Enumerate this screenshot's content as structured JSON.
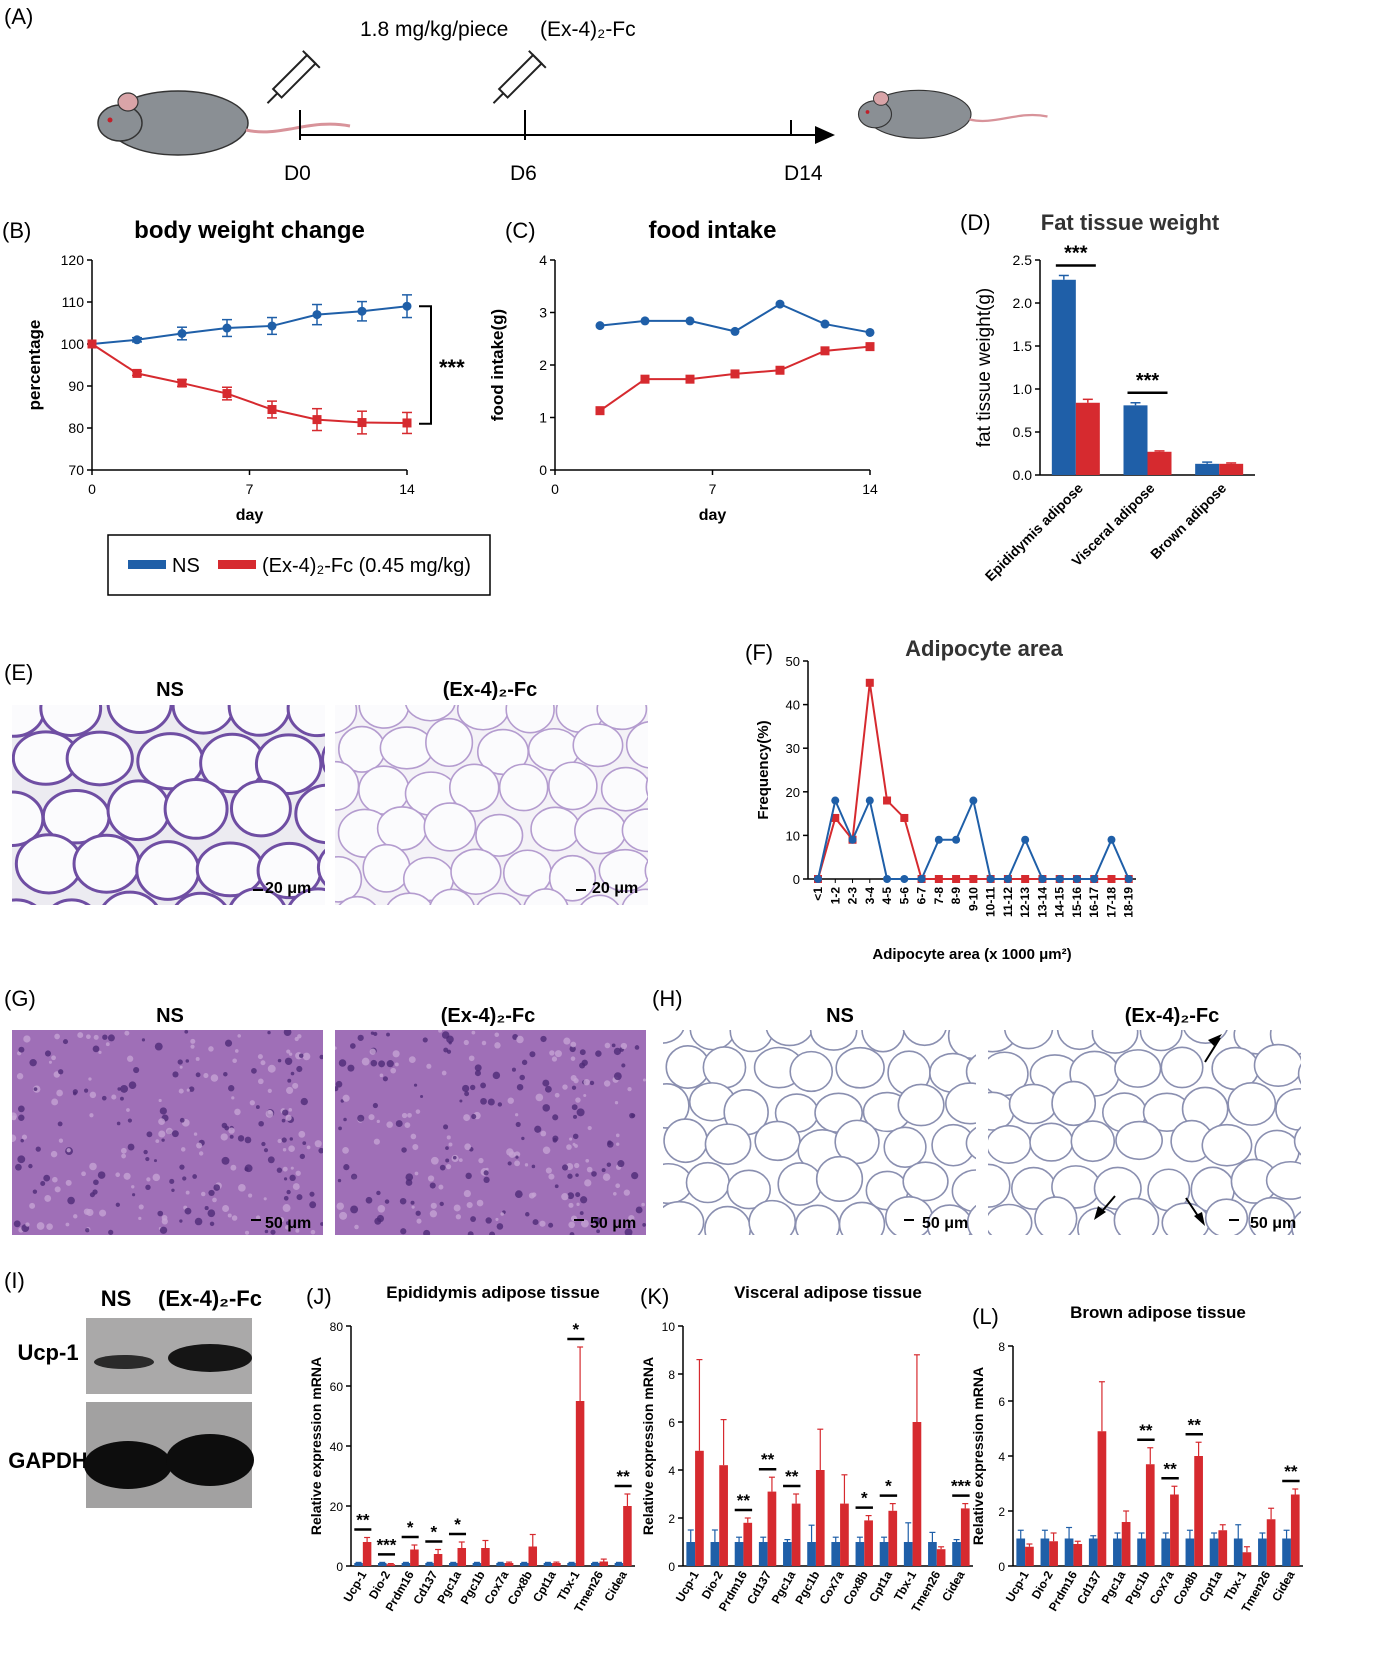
{
  "colors": {
    "ns": "#1f5fa8",
    "treat": "#d62a2f",
    "axis": "#000000",
    "he": "#7d4fa6",
    "ihc": "#8a8fb0"
  },
  "icons": [
    "mouse-icon",
    "syringe-icon",
    "arrow-icon"
  ],
  "panelA": {
    "label": "(A)",
    "dose": "1.8 mg/kg/piece",
    "drug": "(Ex-4)₂-Fc",
    "days": [
      "D0",
      "D6",
      "D14"
    ]
  },
  "legend": {
    "ns": "NS",
    "treat": "(Ex-4)₂-Fc (0.45 mg/kg)"
  },
  "panelE": {
    "label": "(E)",
    "titles": [
      "NS",
      "(Ex-4)₂-Fc"
    ],
    "scale": "20 μm"
  },
  "panelG": {
    "label": "(G)",
    "titles": [
      "NS",
      "(Ex-4)₂-Fc"
    ],
    "scale": "50 μm"
  },
  "panelH": {
    "label": "(H)",
    "titles": [
      "NS",
      "(Ex-4)₂-Fc"
    ],
    "scale": "50 μm"
  },
  "panelI": {
    "label": "(I)",
    "cols": [
      "NS",
      "(Ex-4)₂-Fc"
    ],
    "rows": [
      "Ucp-1",
      "GAPDH"
    ]
  },
  "chart_data": [
    {
      "id": "B",
      "label": "(B)",
      "type": "line",
      "title": "body weight change",
      "xlabel": "day",
      "ylabel": "percentage",
      "xlim": [
        0,
        14
      ],
      "ylim": [
        70,
        120
      ],
      "xticks": [
        0,
        7,
        14
      ],
      "yticks": [
        70,
        80,
        90,
        100,
        110,
        120
      ],
      "sig": "***",
      "series": [
        {
          "name": "NS",
          "x": [
            0,
            2,
            4,
            6,
            8,
            10,
            12,
            14
          ],
          "y": [
            100,
            101,
            102.5,
            103.8,
            104.3,
            107,
            107.8,
            109
          ],
          "err": [
            0,
            0.5,
            1.5,
            2,
            2,
            2.4,
            2.3,
            2.7
          ]
        },
        {
          "name": "(Ex-4)₂-Fc (0.45 mg/kg)",
          "x": [
            0,
            2,
            4,
            6,
            8,
            10,
            12,
            14
          ],
          "y": [
            100,
            93,
            90.7,
            88.2,
            84.4,
            82,
            81.3,
            81.2
          ],
          "err": [
            0,
            0.5,
            0.8,
            1.5,
            2,
            2.6,
            2.7,
            2.5
          ]
        }
      ]
    },
    {
      "id": "C",
      "label": "(C)",
      "type": "line",
      "title": "food intake",
      "xlabel": "day",
      "ylabel": "food intake(g)",
      "xlim": [
        0,
        14
      ],
      "ylim": [
        0,
        4
      ],
      "xticks": [
        0,
        7,
        14
      ],
      "yticks": [
        0,
        1,
        2,
        3,
        4
      ],
      "series": [
        {
          "name": "NS",
          "x": [
            2,
            4,
            6,
            8,
            10,
            12,
            14
          ],
          "y": [
            2.75,
            2.84,
            2.84,
            2.64,
            3.16,
            2.78,
            2.62
          ]
        },
        {
          "name": "(Ex-4)₂-Fc (0.45 mg/kg)",
          "x": [
            2,
            4,
            6,
            8,
            10,
            12,
            14
          ],
          "y": [
            1.13,
            1.73,
            1.73,
            1.83,
            1.9,
            2.27,
            2.35
          ]
        }
      ]
    },
    {
      "id": "D",
      "label": "(D)",
      "type": "bar",
      "title": "Fat tissue weight",
      "ylabel": "fat tissue weight(g)",
      "categories": [
        "Epididymis adipose",
        "Visceral adipose",
        "Brown adipose"
      ],
      "ylim": [
        0,
        2.5
      ],
      "yticks": [
        "0.0",
        "0.5",
        "1.0",
        "1.5",
        "2.0",
        "2.5"
      ],
      "series": [
        {
          "name": "NS",
          "values": [
            2.27,
            0.81,
            0.13
          ],
          "err": [
            0.05,
            0.03,
            0.02
          ]
        },
        {
          "name": "(Ex-4)₂-Fc",
          "values": [
            0.84,
            0.27,
            0.13
          ],
          "err": [
            0.04,
            0.01,
            0.01
          ]
        }
      ],
      "sig": [
        "***",
        "***",
        ""
      ]
    },
    {
      "id": "F",
      "label": "(F)",
      "type": "line",
      "title": "Adipocyte area",
      "xlabel": "Adipocyte area (x 1000 μm²)",
      "ylabel": "Frequency(%)",
      "categories": [
        "<1",
        "1-2",
        "2-3",
        "3-4",
        "4-5",
        "5-6",
        "6-7",
        "7-8",
        "8-9",
        "9-10",
        "10-11",
        "11-12",
        "12-13",
        "13-14",
        "14-15",
        "15-16",
        "16-17",
        "17-18",
        "18-19"
      ],
      "ylim": [
        0,
        50
      ],
      "yticks": [
        0,
        10,
        20,
        30,
        40,
        50
      ],
      "series": [
        {
          "name": "NS",
          "values": [
            0,
            18,
            9,
            18,
            0,
            0,
            0,
            9,
            9,
            18,
            0,
            0,
            9,
            0,
            0,
            0,
            0,
            9,
            0
          ]
        },
        {
          "name": "(Ex-4)₂-Fc",
          "values": [
            0,
            14,
            9,
            45,
            18,
            14,
            0,
            0,
            0,
            0,
            0,
            0,
            0,
            0,
            0,
            0,
            0,
            0,
            0
          ]
        }
      ]
    },
    {
      "id": "J",
      "label": "(J)",
      "type": "bar",
      "title": "Epididymis adipose tissue",
      "ylabel": "Relative expression mRNA",
      "ylim": [
        0,
        80
      ],
      "yticks": [
        0,
        20,
        40,
        60,
        80
      ],
      "categories": [
        "Ucp-1",
        "Dio-2",
        "Prdm16",
        "Cd137",
        "Pgc1a",
        "Pgc1b",
        "Cox7a",
        "Cox8b",
        "Cpt1a",
        "Tbx-1",
        "Tmen26",
        "Cidea"
      ],
      "series": [
        {
          "name": "NS",
          "values": [
            1,
            1,
            1,
            1,
            1,
            1,
            1,
            1,
            1,
            1,
            1,
            1
          ],
          "err": [
            0.2,
            0.2,
            0.2,
            0.2,
            0.2,
            0.2,
            0.2,
            0.2,
            0.2,
            0.2,
            0.2,
            0.2
          ]
        },
        {
          "name": "(Ex-4)₂-Fc",
          "values": [
            8,
            0.6,
            5.5,
            4,
            6,
            6,
            1,
            6.5,
            1,
            55,
            1.5,
            20
          ],
          "err": [
            1.5,
            0.2,
            1.5,
            1.5,
            2,
            2.5,
            0.3,
            4,
            0.3,
            18,
            0.8,
            4
          ]
        }
      ],
      "sig": [
        "**",
        "***",
        "*",
        "*",
        "*",
        "",
        "",
        "",
        "",
        "*",
        "",
        "**"
      ]
    },
    {
      "id": "K",
      "label": "(K)",
      "type": "bar",
      "title": "Visceral adipose tissue",
      "ylabel": "Relative expression mRNA",
      "ylim": [
        0,
        10
      ],
      "yticks": [
        0,
        2,
        4,
        6,
        8,
        10
      ],
      "categories": [
        "Ucp-1",
        "Dio-2",
        "Prdm16",
        "Cd137",
        "Pgc1a",
        "Pgc1b",
        "Cox7a",
        "Cox8b",
        "Cpt1a",
        "Tbx-1",
        "Tmen26",
        "Cidea"
      ],
      "series": [
        {
          "name": "NS",
          "values": [
            1,
            1,
            1,
            1,
            1,
            1,
            1,
            1,
            1,
            1,
            1,
            1
          ],
          "err": [
            0.5,
            0.5,
            0.2,
            0.2,
            0.1,
            0.7,
            0.2,
            0.2,
            0.2,
            0.8,
            0.4,
            0.1
          ]
        },
        {
          "name": "(Ex-4)₂-Fc",
          "values": [
            4.8,
            4.2,
            1.8,
            3.1,
            2.6,
            4,
            2.6,
            1.9,
            2.3,
            6,
            0.7,
            2.4
          ]
        },
        {
          "name": "err",
          "values": [
            3.8,
            1.9,
            0.2,
            0.6,
            0.4,
            1.7,
            1.2,
            0.2,
            0.3,
            2.8,
            0.1,
            0.2
          ]
        }
      ],
      "sig": [
        "",
        "",
        "**",
        "**",
        "**",
        "",
        "",
        "*",
        "*",
        "",
        "",
        "***"
      ]
    },
    {
      "id": "L",
      "label": "(L)",
      "type": "bar",
      "title": "Brown adipose tissue",
      "ylabel": "Relative expression mRNA",
      "ylim": [
        0,
        8
      ],
      "yticks": [
        0,
        2,
        4,
        6,
        8
      ],
      "categories": [
        "Ucp-1",
        "Dio-2",
        "Prdm16",
        "Cd137",
        "Pgc1a",
        "Pgc1b",
        "Cox7a",
        "Cox8b",
        "Cpt1a",
        "Tbx-1",
        "Tmen26",
        "Cidea"
      ],
      "series": [
        {
          "name": "NS",
          "values": [
            1,
            1,
            1,
            1,
            1,
            1,
            1,
            1,
            1,
            1,
            1,
            1
          ],
          "err": [
            0.3,
            0.3,
            0.4,
            0.1,
            0.2,
            0.2,
            0.2,
            0.3,
            0.2,
            0.5,
            0.2,
            0.3
          ]
        },
        {
          "name": "(Ex-4)₂-Fc",
          "values": [
            0.7,
            0.9,
            0.8,
            4.9,
            1.6,
            3.7,
            2.6,
            4,
            1.3,
            0.5,
            1.7,
            2.6
          ]
        },
        {
          "name": "err",
          "values": [
            0.1,
            0.3,
            0.1,
            1.8,
            0.4,
            0.6,
            0.3,
            0.5,
            0.2,
            0.2,
            0.4,
            0.2
          ]
        }
      ],
      "sig": [
        "",
        "",
        "",
        "",
        "",
        "**",
        "**",
        "**",
        "",
        "",
        "",
        "**"
      ]
    }
  ]
}
